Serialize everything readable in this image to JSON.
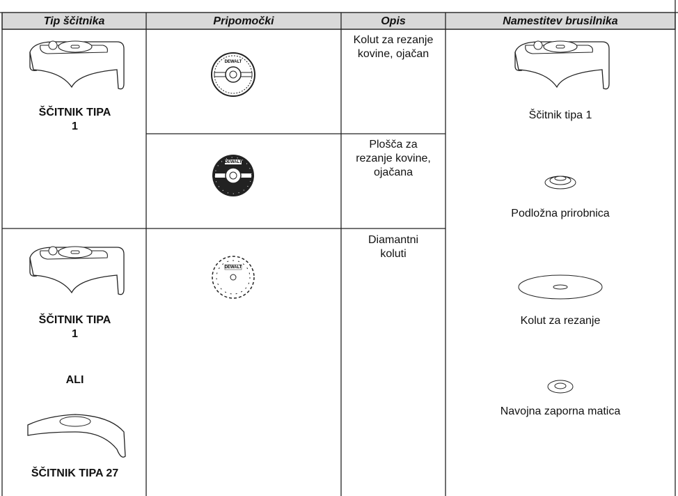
{
  "table": {
    "headers": [
      "Tip ščitnika",
      "Pripomočki",
      "Opis",
      "Namestitev brusilnika"
    ],
    "guards": [
      "ŠČITNIK TIPA 1",
      "ŠČITNIK TIPA 1",
      "ALI",
      "ŠČITNIK TIPA 27"
    ],
    "accessory_logo": "DEWALT",
    "descriptions": [
      "Kolut za rezanje kovine, ojačan",
      "Plošča za rezanje kovine, ojačana",
      "Diamantni koluti"
    ],
    "mounting": [
      "Ščitnik tipa 1",
      "Podložna prirobnica",
      "Kolut za rezanje",
      "Navojna zaporna matica"
    ]
  }
}
